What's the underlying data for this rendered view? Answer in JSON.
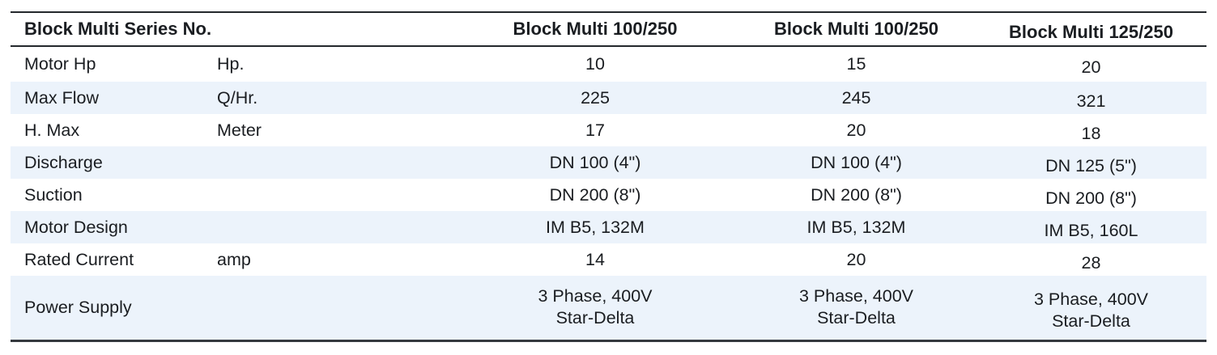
{
  "colors": {
    "stripe": "#ecf3fb",
    "border": "#24282c",
    "border_bottom": "#34393e",
    "text": "#1a1d21"
  },
  "table": {
    "header": {
      "series_label": "Block Multi Series No.",
      "columns": [
        "Block Multi 100/250",
        "Block Multi 100/250",
        "Block Multi 125/250"
      ]
    },
    "rows": [
      {
        "label": "Motor Hp",
        "unit": "Hp.",
        "values": [
          "10",
          "15",
          "20"
        ]
      },
      {
        "label": "Max Flow",
        "unit": "Q/Hr.",
        "values": [
          "225",
          "245",
          "321"
        ]
      },
      {
        "label": "H. Max",
        "unit": "Meter",
        "values": [
          "17",
          "20",
          "18"
        ]
      },
      {
        "label": "Discharge",
        "unit": "",
        "values": [
          "DN 100 (4\")",
          "DN 100 (4\")",
          "DN 125 (5\")"
        ]
      },
      {
        "label": "Suction",
        "unit": "",
        "values": [
          "DN 200 (8\")",
          "DN 200 (8\")",
          "DN 200 (8\")"
        ]
      },
      {
        "label": "Motor Design",
        "unit": "",
        "values": [
          "IM B5, 132M",
          "IM B5, 132M",
          "IM B5, 160L"
        ]
      },
      {
        "label": "Rated Current",
        "unit": "amp",
        "values": [
          "14",
          "20",
          "28"
        ]
      },
      {
        "label": "Power Supply",
        "unit": "",
        "values": [
          "3 Phase, 400V\nStar-Delta",
          "3 Phase, 400V\nStar-Delta",
          "3 Phase, 400V\nStar-Delta"
        ]
      }
    ]
  }
}
